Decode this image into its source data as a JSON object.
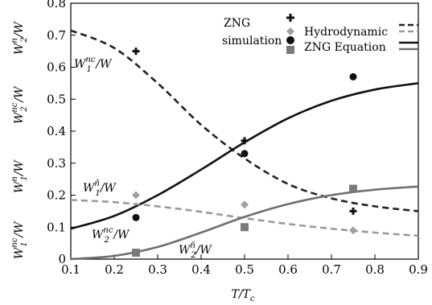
{
  "chart_data": {
    "type": "line",
    "xlabel": "T/T_c",
    "xlim": [
      0.1,
      0.9
    ],
    "ylim": [
      0,
      0.8
    ],
    "x_ticks": [
      "0.1",
      "0.2",
      "0.3",
      "0.4",
      "0.5",
      "0.6",
      "0.7",
      "0.8",
      "0.9"
    ],
    "y_ticks": [
      "0",
      "0.1",
      "0.2",
      "0.3",
      "0.4",
      "0.5",
      "0.6",
      "0.7",
      "0.8"
    ],
    "grid": false,
    "legend": {
      "position": "top-right",
      "group_label_1": "ZNG",
      "group_label_2": "simulation",
      "entries": [
        "Hydrodynamic",
        "ZNG Equation"
      ]
    },
    "left_axis_labels": [
      {
        "main": "W",
        "sup": "n",
        "sub": "2",
        "tail": "/W"
      },
      {
        "main": "W",
        "sup": "nc",
        "sub": "2",
        "tail": "/W"
      },
      {
        "main": "W",
        "sup": "n",
        "sub": "1",
        "tail": "/W"
      },
      {
        "main": "W",
        "sup": "nc",
        "sub": "1",
        "tail": "/W"
      }
    ],
    "annotations": [
      {
        "main": "W",
        "sub": "1",
        "sup": "nc",
        "tail": "/W"
      },
      {
        "main": "W",
        "sub": "1",
        "sup": "ñ",
        "tail": "/W"
      },
      {
        "main": "W",
        "sub": "2",
        "sup": "nc",
        "tail": "/W"
      },
      {
        "main": "W",
        "sub": "2",
        "sup": "ñ",
        "tail": "/W"
      }
    ],
    "series": [
      {
        "style": "dashed",
        "color": "#222222",
        "x": [
          0.1,
          0.2,
          0.3,
          0.4,
          0.5,
          0.6,
          0.7,
          0.8,
          0.9
        ],
        "y": [
          0.715,
          0.66,
          0.55,
          0.42,
          0.315,
          0.235,
          0.19,
          0.165,
          0.15
        ]
      },
      {
        "style": "solid",
        "color": "#111111",
        "x": [
          0.1,
          0.2,
          0.3,
          0.4,
          0.5,
          0.6,
          0.7,
          0.8,
          0.9
        ],
        "y": [
          0.095,
          0.135,
          0.2,
          0.28,
          0.365,
          0.44,
          0.495,
          0.53,
          0.55
        ]
      },
      {
        "style": "dashed",
        "color": "#9a9a9a",
        "x": [
          0.1,
          0.2,
          0.3,
          0.4,
          0.5,
          0.6,
          0.7,
          0.8,
          0.9
        ],
        "y": [
          0.185,
          0.178,
          0.165,
          0.148,
          0.128,
          0.11,
          0.095,
          0.083,
          0.073
        ]
      },
      {
        "style": "solid",
        "color": "#6f6f6f",
        "x": [
          0.1,
          0.2,
          0.3,
          0.4,
          0.5,
          0.6,
          0.7,
          0.8,
          0.9
        ],
        "y": [
          0.0,
          0.01,
          0.038,
          0.083,
          0.132,
          0.172,
          0.2,
          0.217,
          0.227
        ]
      }
    ],
    "points": [
      {
        "marker": "plus",
        "color": "#111111",
        "x": [
          0.25,
          0.5,
          0.75
        ],
        "y": [
          0.65,
          0.37,
          0.15
        ]
      },
      {
        "marker": "circle",
        "color": "#111111",
        "x": [
          0.25,
          0.5,
          0.75
        ],
        "y": [
          0.13,
          0.33,
          0.57
        ]
      },
      {
        "marker": "diamond",
        "color": "#a0a0a0",
        "x": [
          0.25,
          0.5,
          0.75
        ],
        "y": [
          0.2,
          0.17,
          0.09
        ]
      },
      {
        "marker": "square",
        "color": "#7a7a7a",
        "x": [
          0.25,
          0.5,
          0.75
        ],
        "y": [
          0.02,
          0.1,
          0.22
        ]
      }
    ]
  }
}
